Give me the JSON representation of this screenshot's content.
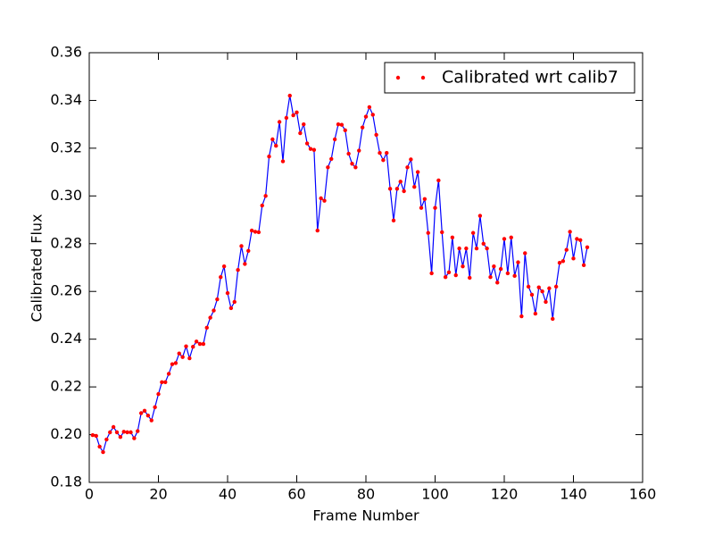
{
  "chart_data": {
    "type": "line",
    "xlabel": "Frame Number",
    "ylabel": "Calibrated Flux",
    "xlim": [
      0,
      160
    ],
    "xticks": [
      0,
      20,
      40,
      60,
      80,
      100,
      120,
      140,
      160
    ],
    "ylim": [
      0.18,
      0.36
    ],
    "yticks": [
      0.18,
      {
        "value": 0.2,
        "label": "0.20"
      },
      0.22,
      0.24,
      0.26,
      0.28,
      {
        "value": 0.3,
        "label": "0.30"
      },
      0.32,
      0.34,
      0.36
    ],
    "legend": "upper right",
    "series": [
      {
        "name": "Calibrated wrt calib7",
        "color": "#ff0000",
        "line_color": "#0000ff",
        "x": [
          1,
          2,
          3,
          4,
          5,
          6,
          7,
          8,
          9,
          10,
          11,
          12,
          13,
          14,
          15,
          16,
          17,
          18,
          19,
          20,
          21,
          22,
          23,
          24,
          25,
          26,
          27,
          28,
          29,
          30,
          31,
          32,
          33,
          34,
          35,
          36,
          37,
          38,
          39,
          40,
          41,
          42,
          43,
          44,
          45,
          46,
          47,
          48,
          49,
          50,
          51,
          52,
          53,
          54,
          55,
          56,
          57,
          58,
          59,
          60,
          61,
          62,
          63,
          64,
          65,
          66,
          67,
          68,
          69,
          70,
          71,
          72,
          73,
          74,
          75,
          76,
          77,
          78,
          79,
          80,
          81,
          82,
          83,
          84,
          85,
          86,
          87,
          88,
          89,
          90,
          91,
          92,
          93,
          94,
          95,
          96,
          97,
          98,
          99,
          100,
          101,
          102,
          103,
          104,
          105,
          106,
          107,
          108,
          109,
          110,
          111,
          112,
          113,
          114,
          115,
          116,
          117,
          118,
          119,
          120,
          121,
          122,
          123,
          124,
          125,
          126,
          127,
          128,
          129,
          130,
          131,
          132,
          133,
          134,
          135,
          136,
          137,
          138,
          139,
          140,
          141,
          142,
          143,
          144
        ],
        "values": [
          0.1998,
          0.1995,
          0.195,
          0.1927,
          0.198,
          0.201,
          0.2032,
          0.201,
          0.199,
          0.2012,
          0.201,
          0.201,
          0.1985,
          0.2015,
          0.209,
          0.21,
          0.208,
          0.206,
          0.2115,
          0.217,
          0.222,
          0.222,
          0.2255,
          0.2295,
          0.23,
          0.234,
          0.2325,
          0.237,
          0.232,
          0.2368,
          0.239,
          0.238,
          0.238,
          0.2448,
          0.249,
          0.252,
          0.2567,
          0.266,
          0.2705,
          0.2593,
          0.253,
          0.2556,
          0.269,
          0.279,
          0.2715,
          0.277,
          0.2855,
          0.285,
          0.2848,
          0.296,
          0.3,
          0.3165,
          0.3237,
          0.321,
          0.331,
          0.3145,
          0.3327,
          0.342,
          0.3338,
          0.335,
          0.3263,
          0.33,
          0.322,
          0.3197,
          0.3193,
          0.2855,
          0.299,
          0.298,
          0.312,
          0.3155,
          0.3237,
          0.33,
          0.3298,
          0.3275,
          0.3177,
          0.3135,
          0.312,
          0.319,
          0.3287,
          0.3332,
          0.3372,
          0.334,
          0.3256,
          0.318,
          0.315,
          0.318,
          0.303,
          0.2897,
          0.303,
          0.306,
          0.302,
          0.312,
          0.3153,
          0.3038,
          0.31,
          0.295,
          0.2987,
          0.2845,
          0.2676,
          0.295,
          0.3065,
          0.2848,
          0.266,
          0.268,
          0.2826,
          0.2668,
          0.278,
          0.2705,
          0.278,
          0.2657,
          0.2845,
          0.278,
          0.2917,
          0.28,
          0.278,
          0.266,
          0.2705,
          0.2637,
          0.2694,
          0.282,
          0.2676,
          0.2826,
          0.2665,
          0.2722,
          0.2496,
          0.276,
          0.262,
          0.2586,
          0.2507,
          0.2617,
          0.26,
          0.2556,
          0.2613,
          0.2485,
          0.262,
          0.272,
          0.2727,
          0.2774,
          0.285,
          0.2738,
          0.282,
          0.2815,
          0.271,
          0.2785
        ]
      }
    ]
  }
}
